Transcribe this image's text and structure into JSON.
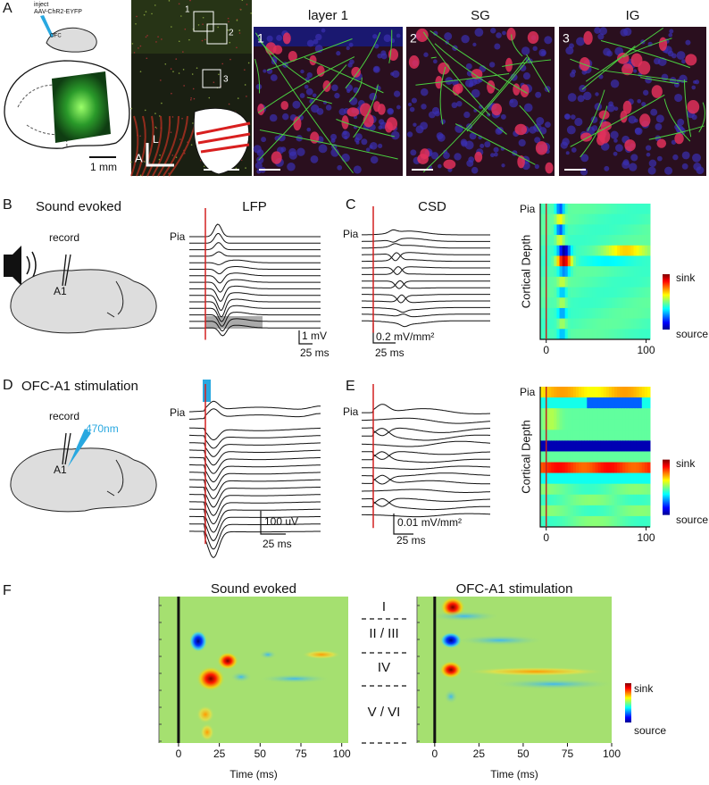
{
  "panel_a": {
    "label": "A",
    "inject": "inject",
    "virus": "AAV-ChR2-EYFP",
    "ofc": "OFC",
    "scale": "1 mm",
    "boxes": [
      "1",
      "2",
      "3"
    ],
    "axis_a": "A",
    "axis_l": "L",
    "images": [
      {
        "number": "1",
        "title": "layer 1"
      },
      {
        "number": "2",
        "title": "SG"
      },
      {
        "number": "3",
        "title": "IG"
      }
    ]
  },
  "panel_b": {
    "label": "B",
    "title": "Sound evoked",
    "record": "record",
    "area": "A1",
    "lfp_title": "LFP",
    "pia": "Pia",
    "scale_v": "1 mV",
    "scale_t": "25 ms"
  },
  "panel_c": {
    "label": "C",
    "title": "CSD",
    "pia": "Pia",
    "scale_v": "0.2 mV/mm²",
    "scale_t": "25 ms",
    "heatmap": {
      "pia": "Pia",
      "ylabel": "Cortical Depth",
      "sink": "sink",
      "source": "source",
      "xticks": [
        0,
        100
      ],
      "xlim": [
        -6,
        104
      ]
    }
  },
  "panel_d": {
    "label": "D",
    "title": "OFC-A1 stimulation",
    "record": "record",
    "wavelength": "470nm",
    "area": "A1",
    "pia": "Pia",
    "scale_v": "100 uV",
    "scale_t": "25 ms"
  },
  "panel_e": {
    "label": "E",
    "pia": "Pia",
    "scale_v": "0.01 mV/mm²",
    "scale_t": "25 ms",
    "heatmap": {
      "pia": "Pia",
      "ylabel": "Cortical Depth",
      "sink": "sink",
      "source": "source",
      "xticks": [
        0,
        100
      ],
      "xlim": [
        -6,
        104
      ]
    }
  },
  "panel_f": {
    "label": "F",
    "layers": [
      "I",
      "II / III",
      "IV",
      "V / VI"
    ],
    "sink": "sink",
    "source": "source",
    "heatmaps": [
      {
        "title": "Sound evoked",
        "xticks": [
          0,
          25,
          50,
          75,
          100
        ],
        "xlim": [
          -12,
          104
        ],
        "xlabel": "Time (ms)"
      },
      {
        "title": "OFC-A1 stimulation",
        "xticks": [
          0,
          25,
          50,
          75,
          100
        ],
        "xlim": [
          -10,
          100
        ],
        "xlabel": "Time (ms)"
      }
    ]
  }
}
